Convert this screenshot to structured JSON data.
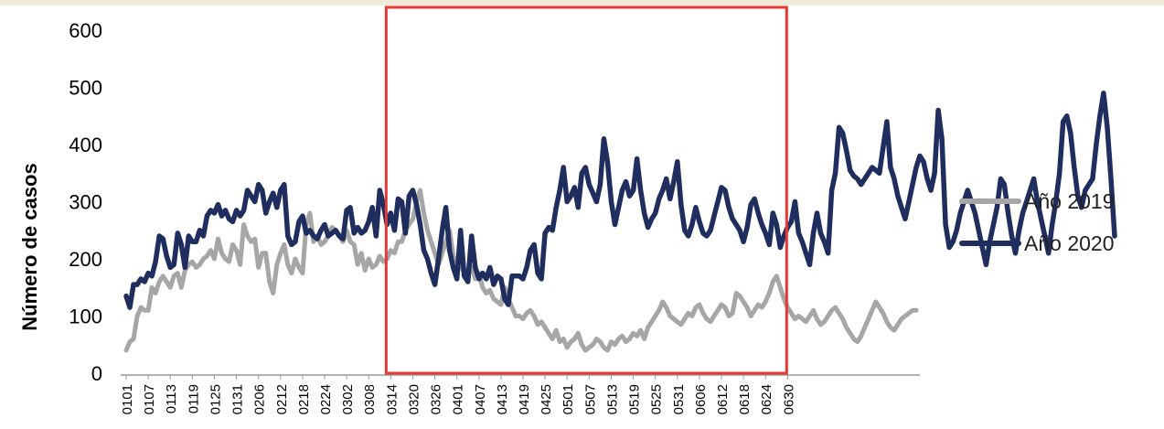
{
  "chart_data": {
    "type": "line",
    "title": "",
    "xlabel": "",
    "ylabel": "Número de casos",
    "ylim": [
      0,
      600
    ],
    "yticks": [
      0,
      100,
      200,
      300,
      400,
      500,
      600
    ],
    "grid": false,
    "legend_position": "right",
    "x_tick_labels": [
      "0101",
      "0107",
      "0113",
      "0119",
      "0125",
      "0131",
      "0206",
      "0212",
      "0218",
      "0224",
      "0302",
      "0308",
      "0314",
      "0320",
      "0326",
      "0401",
      "0407",
      "0413",
      "0419",
      "0425",
      "0501",
      "0507",
      "0513",
      "0519",
      "0525",
      "0531",
      "0606",
      "0612",
      "0618",
      "0624",
      "0630"
    ],
    "highlight": {
      "from": "0314",
      "to": "0629",
      "color": "#e53935"
    },
    "series": [
      {
        "name": "Año 2019",
        "color": "#a6a6a6",
        "values": [
          40,
          55,
          60,
          100,
          115,
          110,
          110,
          150,
          140,
          160,
          170,
          160,
          150,
          170,
          175,
          150,
          180,
          190,
          195,
          185,
          190,
          200,
          205,
          215,
          200,
          235,
          210,
          200,
          195,
          225,
          215,
          190,
          260,
          240,
          230,
          235,
          185,
          210,
          210,
          160,
          140,
          190,
          210,
          225,
          190,
          175,
          200,
          185,
          175,
          260,
          280,
          230,
          240,
          225,
          230,
          240,
          255,
          250,
          240,
          230,
          250,
          230,
          225,
          190,
          210,
          180,
          200,
          185,
          190,
          205,
          195,
          200,
          215,
          210,
          230,
          230,
          250,
          260,
          270,
          300,
          320,
          280,
          250,
          230,
          210,
          190,
          210,
          230,
          250,
          205,
          195,
          190,
          175,
          180,
          185,
          165,
          175,
          150,
          140,
          145,
          130,
          125,
          120,
          150,
          130,
          115,
          100,
          100,
          95,
          105,
          110,
          100,
          85,
          90,
          80,
          70,
          60,
          75,
          55,
          60,
          45,
          55,
          60,
          70,
          50,
          40,
          45,
          50,
          60,
          55,
          45,
          40,
          55,
          50,
          60,
          65,
          55,
          60,
          70,
          65,
          75,
          60,
          80,
          90,
          100,
          110,
          125,
          115,
          100,
          95,
          90,
          85,
          95,
          105,
          100,
          115,
          120,
          105,
          95,
          90,
          100,
          110,
          120,
          115,
          100,
          105,
          140,
          135,
          125,
          115,
          100,
          110,
          120,
          115,
          125,
          140,
          160,
          170,
          150,
          130,
          115,
          105,
          95,
          100,
          95,
          90,
          100,
          110,
          95,
          85,
          90,
          100,
          110,
          115,
          105,
          95,
          80,
          70,
          60,
          55,
          65,
          80,
          95,
          110,
          125,
          115,
          105,
          90,
          80,
          75,
          85,
          95,
          100,
          105,
          110,
          110
        ]
      },
      {
        "name": "Año 2020",
        "color": "#1f2d5f",
        "values": [
          135,
          115,
          155,
          155,
          165,
          160,
          175,
          170,
          195,
          240,
          235,
          205,
          185,
          190,
          245,
          225,
          185,
          240,
          230,
          230,
          250,
          240,
          275,
          285,
          280,
          295,
          275,
          285,
          270,
          265,
          285,
          275,
          285,
          320,
          310,
          300,
          330,
          320,
          280,
          300,
          315,
          290,
          320,
          330,
          240,
          225,
          230,
          265,
          275,
          245,
          250,
          240,
          235,
          250,
          260,
          240,
          245,
          250,
          240,
          235,
          285,
          290,
          245,
          255,
          245,
          250,
          265,
          290,
          240,
          320,
          295,
          260,
          280,
          250,
          305,
          300,
          245,
          310,
          320,
          295,
          260,
          215,
          200,
          175,
          155,
          200,
          250,
          290,
          215,
          185,
          165,
          250,
          170,
          160,
          240,
          185,
          165,
          175,
          165,
          185,
          155,
          170,
          165,
          130,
          120,
          170,
          170,
          170,
          165,
          185,
          215,
          225,
          175,
          165,
          245,
          255,
          250,
          290,
          320,
          360,
          300,
          310,
          325,
          290,
          350,
          360,
          330,
          315,
          300,
          330,
          410,
          370,
          300,
          260,
          290,
          320,
          335,
          310,
          320,
          375,
          320,
          280,
          255,
          270,
          280,
          305,
          320,
          340,
          305,
          335,
          370,
          295,
          250,
          240,
          260,
          290,
          265,
          245,
          240,
          250,
          275,
          300,
          325,
          320,
          290,
          270,
          260,
          250,
          230,
          255,
          295,
          305,
          280,
          260,
          245,
          225,
          280,
          260,
          220,
          240,
          255,
          265,
          300,
          245,
          230,
          210,
          190,
          245,
          280,
          245,
          230,
          210,
          320,
          350,
          430,
          420,
          390,
          355,
          345,
          340,
          330,
          340,
          350,
          360,
          355,
          350,
          395,
          440,
          360,
          340,
          310,
          290,
          270,
          300,
          330,
          360,
          380,
          370,
          340,
          320,
          350,
          460,
          410,
          260,
          220,
          230,
          250,
          280,
          300,
          320,
          300,
          280,
          250,
          220,
          190,
          230,
          260,
          290,
          340,
          330,
          280,
          240,
          210,
          250,
          280,
          300,
          320,
          340,
          300,
          270,
          240,
          210,
          260,
          300,
          350,
          440,
          450,
          420,
          360,
          310,
          290,
          320,
          330,
          340,
          400,
          450,
          490,
          430,
          340,
          240
        ]
      }
    ]
  }
}
